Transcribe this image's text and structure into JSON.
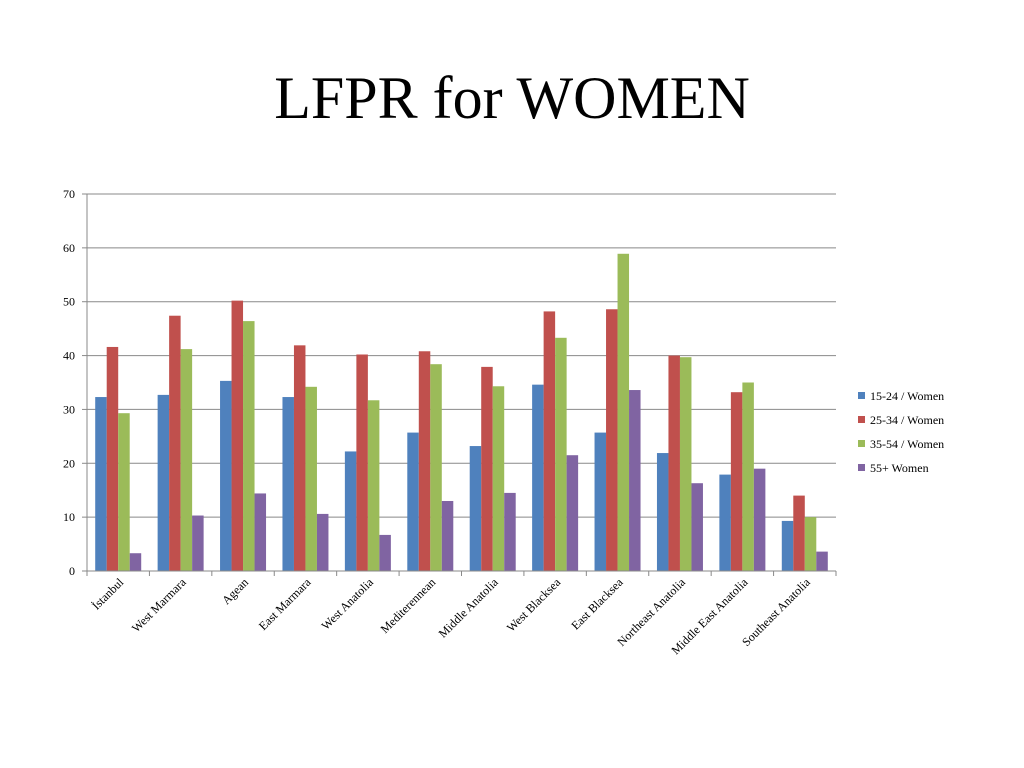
{
  "slide": {
    "title": "LFPR for WOMEN"
  },
  "colors": {
    "series": [
      "#4F81BD",
      "#C0504D",
      "#9BBB59",
      "#8064A2"
    ],
    "gridline": "#898989",
    "axis": "#898989"
  },
  "chart_data": {
    "type": "bar",
    "title": "",
    "xlabel": "",
    "ylabel": "",
    "ylim": [
      0,
      70
    ],
    "yticks": [
      0,
      10,
      20,
      30,
      40,
      50,
      60,
      70
    ],
    "grid": true,
    "legend_position": "right",
    "categories": [
      "İstanbul",
      "West Marmara",
      "Agean",
      "East Marmara",
      "West Anatolia",
      "Mediterennean",
      "Middle Anatolia",
      "West Blacksea",
      "East Blacksea",
      "Northeast Anatolia",
      "Middle East Anatolia",
      "Southeast Anatolia"
    ],
    "series": [
      {
        "name": "15-24 / Women",
        "values": [
          32.3,
          32.7,
          35.3,
          32.3,
          22.2,
          25.7,
          23.2,
          34.6,
          25.7,
          21.9,
          17.9,
          9.3
        ]
      },
      {
        "name": "25-34 / Women",
        "values": [
          41.6,
          47.4,
          50.2,
          41.9,
          40.2,
          40.8,
          37.9,
          48.2,
          48.6,
          40.0,
          33.2,
          14.0
        ]
      },
      {
        "name": "35-54 / Women",
        "values": [
          29.3,
          41.2,
          46.4,
          34.2,
          31.7,
          38.4,
          34.3,
          43.3,
          58.9,
          39.7,
          35.0,
          10.0
        ]
      },
      {
        "name": "55+ Women",
        "values": [
          3.3,
          10.3,
          14.4,
          10.6,
          6.7,
          13.0,
          14.5,
          21.5,
          33.6,
          16.3,
          19.0,
          3.6
        ]
      }
    ]
  }
}
